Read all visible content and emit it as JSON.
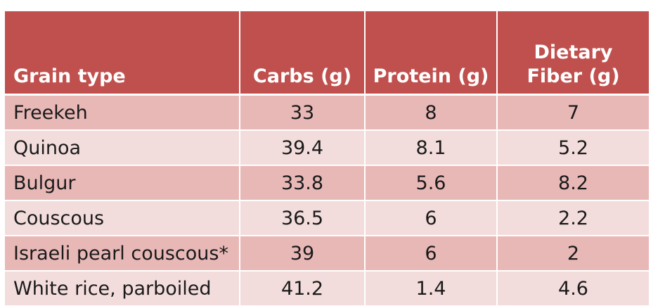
{
  "table": {
    "headers": {
      "grain_type": "Grain type",
      "carbs": "Carbs (g)",
      "protein": "Protein (g)",
      "fiber_line1": "Dietary",
      "fiber_line2": "Fiber (g)"
    },
    "rows": [
      {
        "grain": "Freekeh",
        "carbs": "33",
        "protein": "8",
        "fiber": "7"
      },
      {
        "grain": "Quinoa",
        "carbs": "39.4",
        "protein": "8.1",
        "fiber": "5.2"
      },
      {
        "grain": "Bulgur",
        "carbs": "33.8",
        "protein": "5.6",
        "fiber": "8.2"
      },
      {
        "grain": "Couscous",
        "carbs": "36.5",
        "protein": "6",
        "fiber": "2.2"
      },
      {
        "grain": "Israeli pearl couscous*",
        "carbs": "39",
        "protein": "6",
        "fiber": "2"
      },
      {
        "grain": "White rice, parboiled",
        "carbs": "41.2",
        "protein": "1.4",
        "fiber": "4.6"
      }
    ],
    "colors": {
      "header_bg": "#c0504d",
      "header_text": "#ffffff",
      "row_dark": "#e8b8b7",
      "row_light": "#f3dddc"
    }
  }
}
